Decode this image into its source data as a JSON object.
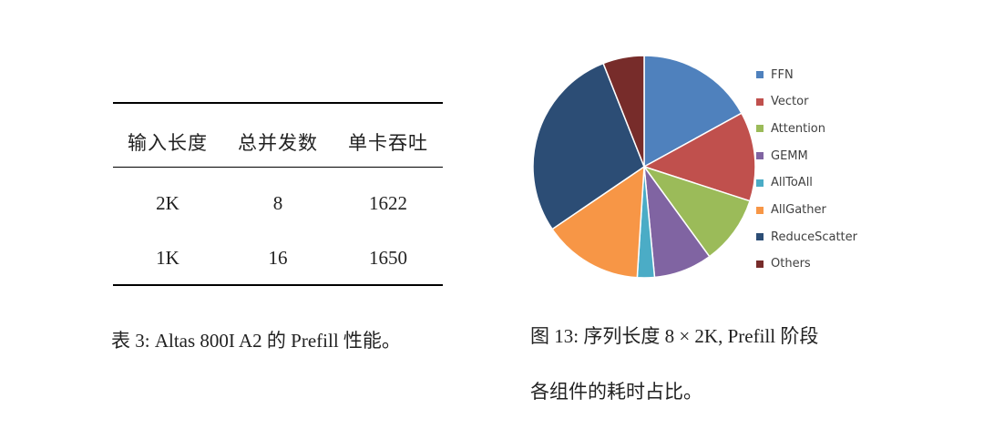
{
  "table": {
    "headers": [
      "输入长度",
      "总并发数",
      "单卡吞吐"
    ],
    "rows": [
      [
        "2K",
        "8",
        "1622"
      ],
      [
        "1K",
        "16",
        "1650"
      ]
    ],
    "caption": "表 3: Altas 800I A2 的 Prefill 性能。"
  },
  "figure": {
    "caption_line1": "图 13: 序列长度 8 × 2K, Prefill 阶段",
    "caption_line2": "各组件的耗时占比。"
  },
  "chart_data": {
    "type": "pie",
    "categories": [
      "FFN",
      "Vector",
      "Attention",
      "GEMM",
      "AllToAll",
      "AllGather",
      "ReduceScatter",
      "Others"
    ],
    "values": [
      17,
      13,
      10,
      8.5,
      2.5,
      14.5,
      28.5,
      6
    ],
    "colors": [
      "#4f81bd",
      "#c0504d",
      "#9bbb59",
      "#8064a2",
      "#4bacc6",
      "#f79646",
      "#2c4d75",
      "#772c2a"
    ],
    "title": "",
    "legend_position": "right"
  }
}
